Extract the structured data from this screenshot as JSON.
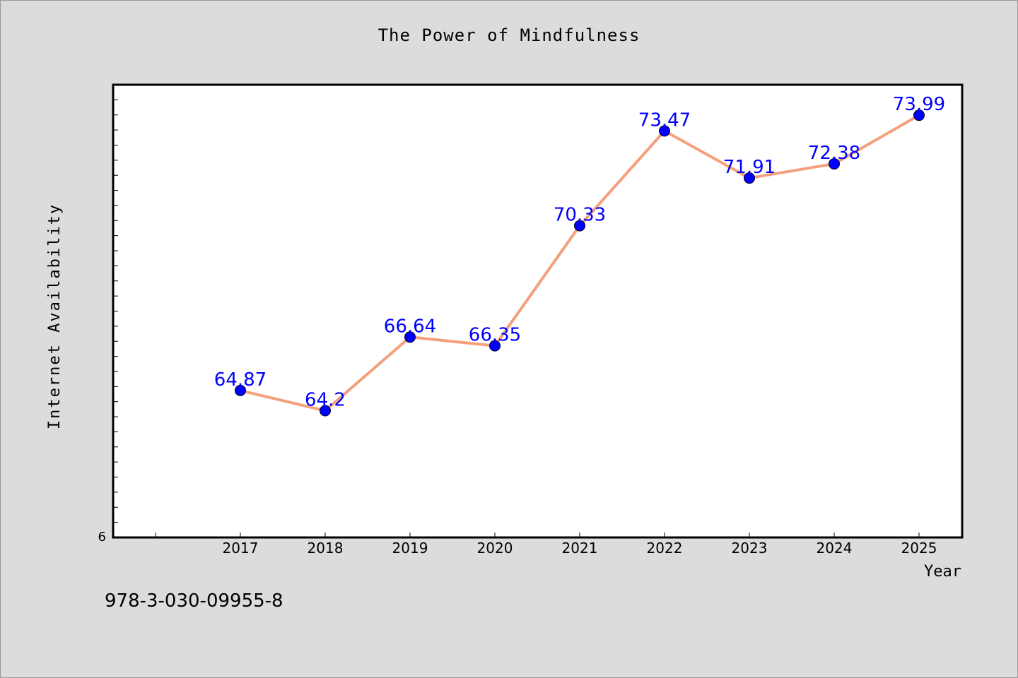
{
  "chart_data": {
    "type": "line",
    "title": "The Power of Mindfulness",
    "xlabel": "Year",
    "ylabel": "Internet Availability",
    "x": [
      "2017",
      "2018",
      "2019",
      "2020",
      "2021",
      "2022",
      "2023",
      "2024",
      "2025"
    ],
    "y": [
      64.87,
      64.2,
      66.64,
      66.35,
      70.33,
      73.47,
      71.91,
      72.38,
      73.99
    ],
    "data_labels": [
      "64.87",
      "64.2",
      "66.64",
      "66.35",
      "70.33",
      "73.47",
      "71.91",
      "72.38",
      "73.99"
    ],
    "ylim": [
      60,
      75
    ],
    "y_tick_label": "6",
    "grid": false,
    "line_color": "#f4a07c",
    "marker_color": "#0000ff",
    "label_color": "#0000ff"
  },
  "footer_code": "978-3-030-09955-8"
}
